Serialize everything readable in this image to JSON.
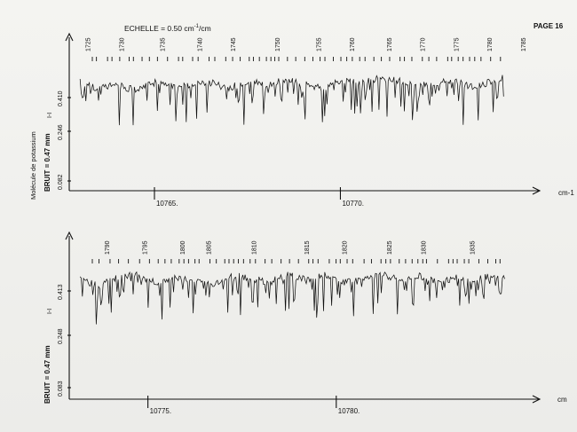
{
  "header": {
    "scale_label": "ECHELLE = 0.50 cm",
    "scale_sup": "-1",
    "scale_unit": "/cm",
    "page_label": "PAGE 16"
  },
  "chart_data": [
    {
      "type": "line",
      "panel": "top",
      "title": "",
      "ylabel_molecule": "Molécule de potassium",
      "ylabel_noise": "BRUIT = 0.47 mm",
      "ylabel_symbol": "I-I",
      "ytick_labels": [
        "0.410",
        "0.246",
        "0.082"
      ],
      "xunit": "cm-1",
      "xticks": [
        10765,
        10770
      ],
      "xtick_labels": [
        "10765.",
        "10770."
      ],
      "xlim": [
        10762.9,
        10774.5
      ],
      "line_numbers": [
        1725,
        1730,
        1735,
        1740,
        1745,
        1750,
        1755,
        1760,
        1765,
        1770,
        1775,
        1780,
        1785
      ],
      "line_numbers_x": [
        10763.2,
        10764.1,
        10765.2,
        10766.2,
        10767.1,
        10768.3,
        10769.4,
        10770.3,
        10771.3,
        10772.2,
        10773.1,
        10774.0,
        10774.9
      ],
      "series": [
        {
          "x": [
            10763.0,
            10763.5,
            10764.0,
            10764.5,
            10765.0,
            10765.5,
            10766.0,
            10766.5,
            10767.0,
            10767.5,
            10768.0,
            10768.5,
            10769.0,
            10769.5,
            10770.0,
            10770.5,
            10771.0,
            10771.5,
            10772.0,
            10772.5,
            10773.0,
            10773.5,
            10774.0,
            10774.4
          ],
          "y": [
            0.44,
            0.41,
            0.43,
            0.4,
            0.44,
            0.42,
            0.43,
            0.44,
            0.41,
            0.45,
            0.43,
            0.45,
            0.44,
            0.41,
            0.45,
            0.44,
            0.46,
            0.45,
            0.44,
            0.43,
            0.45,
            0.42,
            0.44,
            0.47
          ]
        }
      ]
    },
    {
      "type": "line",
      "panel": "bottom",
      "title": "",
      "ylabel_noise": "BRUIT = 0.47 mm",
      "ylabel_symbol": "I-I",
      "ytick_labels": [
        "0.413",
        "0.248",
        "0.083"
      ],
      "xunit": "cm",
      "xticks": [
        10775,
        10780
      ],
      "xtick_labels": [
        "10775.",
        "10780."
      ],
      "xlim": [
        10773.1,
        10784.6
      ],
      "line_numbers": [
        1790,
        1795,
        1800,
        1805,
        1810,
        1815,
        1820,
        1825,
        1830,
        1835
      ],
      "line_numbers_x": [
        10773.9,
        10774.9,
        10775.9,
        10776.6,
        10777.8,
        10779.2,
        10780.2,
        10781.4,
        10782.3,
        10783.6
      ],
      "series": [
        {
          "x": [
            10773.2,
            10773.7,
            10774.2,
            10774.7,
            10775.2,
            10775.7,
            10776.2,
            10776.7,
            10777.2,
            10777.7,
            10778.2,
            10778.7,
            10779.2,
            10779.7,
            10780.2,
            10780.7,
            10781.2,
            10781.7,
            10782.2,
            10782.7,
            10783.2,
            10783.7,
            10784.2,
            10784.5
          ],
          "y": [
            0.42,
            0.4,
            0.43,
            0.44,
            0.41,
            0.43,
            0.42,
            0.4,
            0.44,
            0.43,
            0.41,
            0.44,
            0.42,
            0.44,
            0.41,
            0.43,
            0.44,
            0.42,
            0.44,
            0.41,
            0.43,
            0.42,
            0.44,
            0.42
          ]
        }
      ]
    }
  ]
}
